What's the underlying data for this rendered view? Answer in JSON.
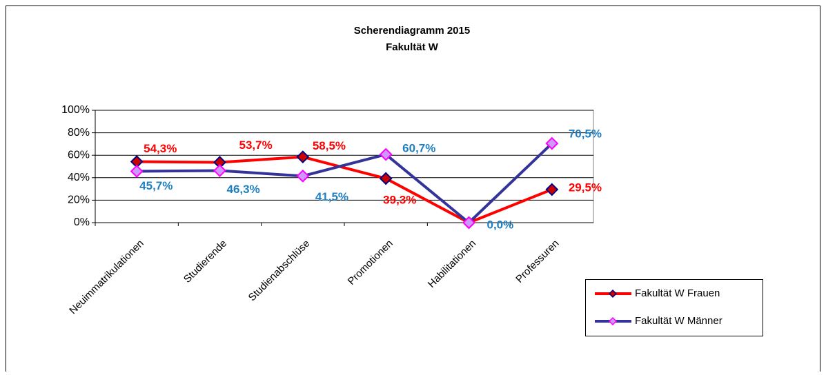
{
  "chart_data": {
    "type": "line",
    "title": "Scherendiagramm  2015",
    "subtitle": "Fakultät W",
    "categories": [
      "Neuimmatrikulationen",
      "Studierende",
      "Studienabschlüse",
      "Promotionen",
      "Habilitationen",
      "Professuren"
    ],
    "series": [
      {
        "name": "Fakultät W Frauen",
        "color": "#ff0000",
        "marker_fill": "#cc0000",
        "marker_stroke": "#000080",
        "values": [
          54.3,
          53.7,
          58.5,
          39.3,
          0,
          29.5
        ],
        "value_labels": [
          "54,3%",
          "53,7%",
          "58,5%",
          "39,3%",
          null,
          "29,5%"
        ]
      },
      {
        "name": "Fakultät W Männer",
        "color": "#333399",
        "marker_fill": "#cc99ff",
        "marker_stroke": "#ff00ff",
        "values": [
          45.7,
          46.3,
          41.5,
          60.7,
          0,
          70.5
        ],
        "value_labels": [
          "45,7%",
          "46,3%",
          "41,5%",
          "60,7%",
          "0,0%",
          "70,5%"
        ]
      }
    ],
    "ylim": [
      0,
      100
    ],
    "yticks": [
      {
        "value": 0,
        "label": "0%"
      },
      {
        "value": 20,
        "label": "20%"
      },
      {
        "value": 40,
        "label": "40%"
      },
      {
        "value": 60,
        "label": "60%"
      },
      {
        "value": 80,
        "label": "80%"
      },
      {
        "value": 100,
        "label": "100%"
      }
    ],
    "grid": true,
    "legend": "bottom-right"
  }
}
